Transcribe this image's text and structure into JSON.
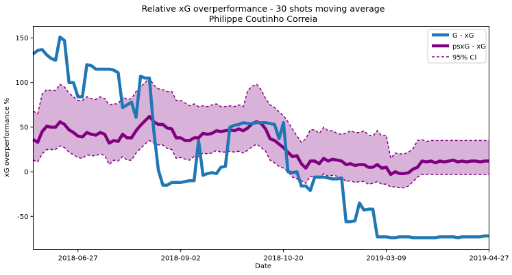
{
  "chart_data": {
    "type": "line",
    "title": "Relative xG overperformance - 30 shots moving average",
    "subtitle": "Philippe Coutinho Correia",
    "xlabel": "Date",
    "ylabel": "xG overperformance %",
    "ylim": [
      -87,
      163
    ],
    "yticks": [
      150,
      100,
      50,
      0,
      -50
    ],
    "x_ticks": [
      {
        "label": "2018-06-27",
        "x": 10
      },
      {
        "label": "2018-09-02",
        "x": 33
      },
      {
        "label": "2018-10-20",
        "x": 56
      },
      {
        "label": "2019-03-09",
        "x": 79
      },
      {
        "label": "2019-04-27",
        "x": 102
      }
    ],
    "xlim": [
      0,
      102
    ],
    "grid": false,
    "legend_position": "top-right",
    "series": [
      {
        "name": "G - xG",
        "color": "#1f77b4",
        "style": "solid",
        "x": [
          0,
          1,
          2,
          3,
          4,
          5,
          6,
          7,
          8,
          9,
          10,
          11,
          12,
          13,
          14,
          15,
          16,
          17,
          18,
          19,
          20,
          21,
          22,
          23,
          24,
          25,
          26,
          27,
          28,
          29,
          30,
          31,
          32,
          33,
          34,
          35,
          36,
          37,
          38,
          39,
          40,
          41,
          42,
          43,
          44,
          45,
          46,
          47,
          48,
          49,
          50,
          51,
          52,
          53,
          54,
          55,
          56,
          57,
          58,
          59,
          60,
          61,
          62,
          63,
          64,
          65,
          66,
          67,
          68,
          69,
          70,
          71,
          72,
          73,
          74,
          75,
          76,
          77,
          78,
          79,
          80,
          81,
          82,
          83,
          84,
          85,
          86,
          87,
          88,
          89,
          90,
          91,
          92,
          93,
          94,
          95,
          96,
          97,
          98,
          99,
          100,
          101,
          102
        ],
        "values": [
          132,
          136,
          137,
          131,
          127,
          125,
          151,
          147,
          100,
          100,
          84,
          84,
          120,
          119,
          115,
          115,
          115,
          115,
          114,
          111,
          72,
          75,
          78,
          61,
          107,
          105,
          105,
          45,
          2,
          -15,
          -15,
          -12,
          -12,
          -12,
          -11,
          -10,
          -10,
          35,
          -4,
          -2,
          -1,
          -2,
          5,
          6,
          50,
          52,
          53,
          55,
          54,
          54,
          55,
          55,
          55,
          54,
          53,
          37,
          55,
          0,
          -1,
          0,
          -16,
          -16,
          -21,
          -6,
          -6,
          -6,
          -7,
          -8,
          -8,
          -7,
          -56,
          -56,
          -55,
          -35,
          -43,
          -42,
          -42,
          -73,
          -73,
          -73,
          -74,
          -74,
          -73,
          -73,
          -73,
          -74,
          -74,
          -74,
          -74,
          -74,
          -74,
          -73,
          -73,
          -73,
          -73,
          -74,
          -73,
          -73,
          -73,
          -73,
          -73,
          -72,
          -72
        ]
      },
      {
        "name": "psxG - xG",
        "color": "#800080",
        "style": "solid",
        "x": [
          0,
          1,
          2,
          3,
          4,
          5,
          6,
          7,
          8,
          9,
          10,
          11,
          12,
          13,
          14,
          15,
          16,
          17,
          18,
          19,
          20,
          21,
          22,
          23,
          24,
          25,
          26,
          27,
          28,
          29,
          30,
          31,
          32,
          33,
          34,
          35,
          36,
          37,
          38,
          39,
          40,
          41,
          42,
          43,
          44,
          45,
          46,
          47,
          48,
          49,
          50,
          51,
          52,
          53,
          54,
          55,
          56,
          57,
          58,
          59,
          60,
          61,
          62,
          63,
          64,
          65,
          66,
          67,
          68,
          69,
          70,
          71,
          72,
          73,
          74,
          75,
          76,
          77,
          78,
          79,
          80,
          81,
          82,
          83,
          84,
          85,
          86,
          87,
          88,
          89,
          90,
          91,
          92,
          93,
          94,
          95,
          96,
          97,
          98,
          99,
          100,
          101,
          102
        ],
        "values": [
          36,
          33,
          45,
          51,
          50,
          50,
          56,
          53,
          47,
          44,
          40,
          39,
          44,
          42,
          41,
          44,
          42,
          32,
          35,
          34,
          42,
          38,
          38,
          46,
          52,
          57,
          62,
          56,
          53,
          53,
          49,
          48,
          38,
          38,
          35,
          35,
          38,
          38,
          43,
          42,
          43,
          46,
          45,
          46,
          47,
          46,
          48,
          46,
          49,
          54,
          56,
          54,
          48,
          37,
          35,
          31,
          27,
          22,
          17,
          18,
          9,
          4,
          12,
          12,
          9,
          15,
          12,
          14,
          13,
          12,
          8,
          9,
          7,
          8,
          8,
          5,
          5,
          8,
          4,
          5,
          -3,
          0,
          -2,
          -2,
          -1,
          3,
          5,
          12,
          11,
          12,
          10,
          12,
          11,
          12,
          13,
          11,
          12,
          11,
          12,
          12,
          11,
          12,
          12
        ]
      },
      {
        "name": "95% CI",
        "color": "#800080",
        "style": "dashed",
        "x": [
          0,
          1,
          2,
          3,
          4,
          5,
          6,
          7,
          8,
          9,
          10,
          11,
          12,
          13,
          14,
          15,
          16,
          17,
          18,
          19,
          20,
          21,
          22,
          23,
          24,
          25,
          26,
          27,
          28,
          29,
          30,
          31,
          32,
          33,
          34,
          35,
          36,
          37,
          38,
          39,
          40,
          41,
          42,
          43,
          44,
          45,
          46,
          47,
          48,
          49,
          50,
          51,
          52,
          53,
          54,
          55,
          56,
          57,
          58,
          59,
          60,
          61,
          62,
          63,
          64,
          65,
          66,
          67,
          68,
          69,
          70,
          71,
          72,
          73,
          74,
          75,
          76,
          77,
          78,
          79,
          80,
          81,
          82,
          83,
          84,
          85,
          86,
          87,
          88,
          89,
          90,
          91,
          92,
          93,
          94,
          95,
          96,
          97,
          98,
          99,
          100,
          101,
          102
        ],
        "upper": [
          68,
          65,
          87,
          92,
          91,
          91,
          98,
          95,
          88,
          84,
          80,
          80,
          84,
          82,
          81,
          84,
          82,
          75,
          76,
          76,
          84,
          81,
          82,
          90,
          95,
          100,
          105,
          97,
          93,
          92,
          90,
          90,
          80,
          80,
          77,
          74,
          76,
          73,
          74,
          73,
          75,
          76,
          73,
          73,
          74,
          73,
          75,
          73,
          91,
          96,
          98,
          92,
          82,
          75,
          72,
          67,
          63,
          56,
          48,
          40,
          33,
          37,
          47,
          47,
          43,
          50,
          46,
          46,
          43,
          42,
          43,
          46,
          44,
          44,
          46,
          41,
          40,
          46,
          40,
          41,
          15,
          21,
          20,
          20,
          22,
          26,
          35,
          36,
          34,
          35,
          35,
          35,
          35,
          35,
          35,
          35,
          35,
          35,
          35,
          35,
          35,
          35,
          35
        ],
        "lower": [
          13,
          11,
          20,
          25,
          25,
          25,
          29,
          27,
          22,
          19,
          16,
          15,
          19,
          18,
          18,
          20,
          18,
          8,
          13,
          12,
          17,
          13,
          13,
          21,
          26,
          31,
          35,
          32,
          30,
          30,
          26,
          25,
          15,
          16,
          14,
          13,
          17,
          17,
          21,
          20,
          21,
          24,
          22,
          22,
          23,
          22,
          23,
          21,
          24,
          28,
          31,
          27,
          23,
          13,
          10,
          6,
          4,
          0,
          -6,
          -8,
          -10,
          -13,
          -5,
          -6,
          -8,
          -2,
          -5,
          -4,
          -5,
          -6,
          -11,
          -10,
          -12,
          -11,
          -11,
          -14,
          -13,
          -11,
          -14,
          -14,
          -17,
          -17,
          -18,
          -18,
          -16,
          -11,
          -6,
          -3,
          -3,
          -3,
          -3,
          -3,
          -3,
          -3,
          -3,
          -3,
          -3,
          -3,
          -3,
          -3,
          -3,
          -3,
          -3
        ]
      }
    ]
  }
}
